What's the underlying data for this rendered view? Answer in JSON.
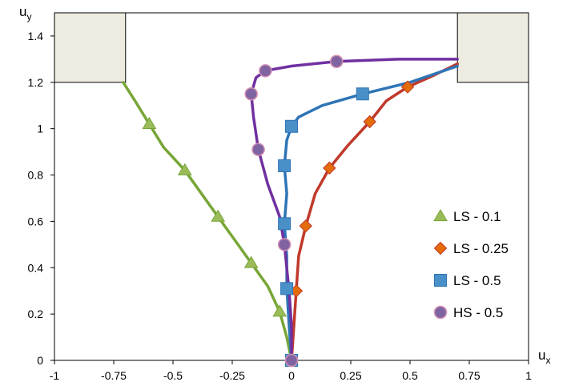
{
  "chart_data": {
    "type": "line",
    "xlabel_main": "u",
    "xlabel_sub": "x",
    "ylabel_main": "u",
    "ylabel_sub": "y",
    "xlim": [
      -1,
      1
    ],
    "ylim": [
      0,
      1.5
    ],
    "grid": false,
    "legend": "right",
    "x_ticks": [
      {
        "value": -1,
        "label": "-1"
      },
      {
        "value": -0.75,
        "label": "-0.75"
      },
      {
        "value": -0.5,
        "label": "-0.5"
      },
      {
        "value": -0.25,
        "label": "-0.25"
      },
      {
        "value": 0,
        "label": "0"
      },
      {
        "value": 0.25,
        "label": "0.25"
      },
      {
        "value": 0.5,
        "label": "0.5"
      },
      {
        "value": 0.75,
        "label": "0.75"
      },
      {
        "value": 1,
        "label": "1"
      }
    ],
    "y_ticks": [
      {
        "value": 0,
        "label": "0"
      },
      {
        "value": 0.2,
        "label": "0.2"
      },
      {
        "value": 0.4,
        "label": "0.4"
      },
      {
        "value": 0.6,
        "label": "0.6"
      },
      {
        "value": 0.8,
        "label": "0.8"
      },
      {
        "value": 1,
        "label": "1"
      },
      {
        "value": 1.2,
        "label": "1.2"
      },
      {
        "value": 1.4,
        "label": "1.4"
      }
    ],
    "blocks": [
      {
        "x": [
          -1,
          -0.7
        ],
        "y": [
          1.2,
          1.52
        ]
      },
      {
        "x": [
          0.7,
          1
        ],
        "y": [
          1.2,
          1.52
        ]
      }
    ],
    "series": [
      {
        "name": "LS - 0.1",
        "color": "#77a637",
        "marker": "triangle",
        "marker_fill": "#9bbb59",
        "line": [
          [
            -0.71,
            1.2
          ],
          [
            -0.66,
            1.12
          ],
          [
            -0.6,
            1.02
          ],
          [
            -0.54,
            0.92
          ],
          [
            -0.45,
            0.82
          ],
          [
            -0.38,
            0.72
          ],
          [
            -0.31,
            0.62
          ],
          [
            -0.24,
            0.52
          ],
          [
            -0.17,
            0.42
          ],
          [
            -0.1,
            0.32
          ],
          [
            -0.05,
            0.21
          ],
          [
            -0.02,
            0.1
          ],
          [
            0,
            0
          ]
        ],
        "points": [
          [
            -0.6,
            1.02
          ],
          [
            -0.45,
            0.82
          ],
          [
            -0.31,
            0.62
          ],
          [
            -0.17,
            0.42
          ],
          [
            -0.05,
            0.21
          ],
          [
            0,
            0
          ]
        ]
      },
      {
        "name": "LS - 0.25",
        "color": "#c0392b",
        "marker": "diamond",
        "marker_fill": "#e46c0a",
        "line": [
          [
            0.7,
            1.28
          ],
          [
            0.6,
            1.23
          ],
          [
            0.49,
            1.18
          ],
          [
            0.4,
            1.12
          ],
          [
            0.33,
            1.03
          ],
          [
            0.24,
            0.93
          ],
          [
            0.16,
            0.83
          ],
          [
            0.1,
            0.72
          ],
          [
            0.06,
            0.58
          ],
          [
            0.03,
            0.45
          ],
          [
            0.02,
            0.3
          ],
          [
            0.01,
            0.15
          ],
          [
            0,
            0
          ]
        ],
        "points": [
          [
            0.49,
            1.18
          ],
          [
            0.33,
            1.03
          ],
          [
            0.16,
            0.83
          ],
          [
            0.06,
            0.58
          ],
          [
            0.02,
            0.3
          ],
          [
            0,
            0
          ]
        ]
      },
      {
        "name": "LS - 0.5",
        "color": "#2e75b6",
        "marker": "square",
        "marker_fill": "#4a90c8",
        "line": [
          [
            0.7,
            1.27
          ],
          [
            0.5,
            1.2
          ],
          [
            0.3,
            1.15
          ],
          [
            0.13,
            1.1
          ],
          [
            0.03,
            1.05
          ],
          [
            0,
            1.01
          ],
          [
            -0.02,
            0.95
          ],
          [
            -0.03,
            0.84
          ],
          [
            -0.02,
            0.72
          ],
          [
            -0.03,
            0.59
          ],
          [
            -0.02,
            0.45
          ],
          [
            -0.02,
            0.31
          ],
          [
            -0.01,
            0.15
          ],
          [
            0,
            0
          ]
        ],
        "points": [
          [
            0.3,
            1.15
          ],
          [
            0,
            1.01
          ],
          [
            -0.03,
            0.84
          ],
          [
            -0.03,
            0.59
          ],
          [
            -0.02,
            0.31
          ],
          [
            0,
            0
          ]
        ]
      },
      {
        "name": "HS - 0.5",
        "color": "#7030a0",
        "marker": "circle",
        "marker_fill": "#8064a2",
        "line": [
          [
            0.7,
            1.3
          ],
          [
            0.45,
            1.3
          ],
          [
            0.19,
            1.29
          ],
          [
            0,
            1.27
          ],
          [
            -0.11,
            1.25
          ],
          [
            -0.15,
            1.22
          ],
          [
            -0.17,
            1.15
          ],
          [
            -0.16,
            1.05
          ],
          [
            -0.14,
            0.91
          ],
          [
            -0.1,
            0.76
          ],
          [
            -0.05,
            0.62
          ],
          [
            -0.03,
            0.5
          ],
          [
            -0.01,
            0.3
          ],
          [
            0,
            0.15
          ],
          [
            0,
            0
          ]
        ],
        "points": [
          [
            0.19,
            1.29
          ],
          [
            -0.11,
            1.25
          ],
          [
            -0.17,
            1.15
          ],
          [
            -0.14,
            0.91
          ],
          [
            -0.03,
            0.5
          ],
          [
            0,
            0
          ]
        ]
      }
    ]
  }
}
